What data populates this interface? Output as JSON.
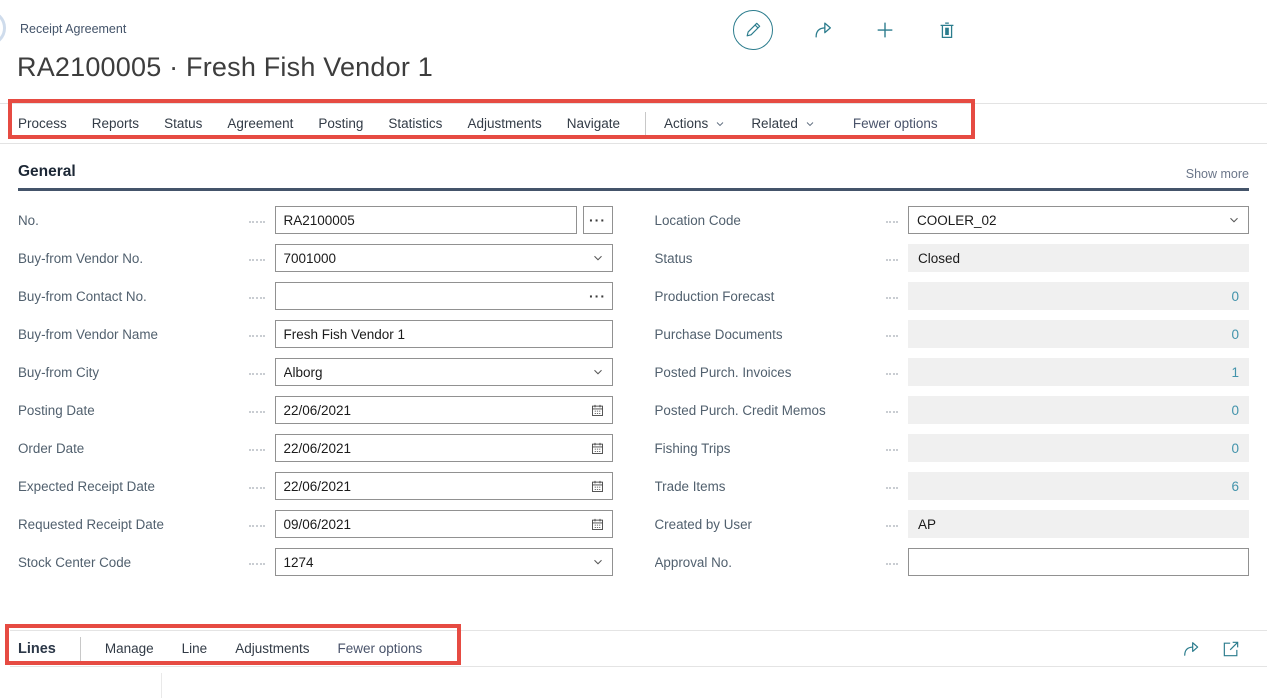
{
  "colors": {
    "accent_teal": "#2b7c8d",
    "link_teal": "#4293ab",
    "annotation_red": "#e64b42",
    "underline_navy": "#44546a",
    "readonly_bg": "#f0f0f0"
  },
  "header": {
    "breadcrumb": "Receipt Agreement",
    "title": "RA2100005 · Fresh Fish Vendor 1",
    "actions": [
      {
        "icon": "edit-pencil-icon"
      },
      {
        "icon": "share-icon"
      },
      {
        "icon": "add-icon"
      },
      {
        "icon": "delete-icon"
      }
    ]
  },
  "menubar": {
    "items": [
      "Process",
      "Reports",
      "Status",
      "Agreement",
      "Posting",
      "Statistics",
      "Adjustments",
      "Navigate"
    ],
    "dropdown_items": [
      "Actions",
      "Related"
    ],
    "fewer_options_label": "Fewer options"
  },
  "general": {
    "title": "General",
    "show_more": "Show more",
    "left_fields": [
      {
        "label": "No.",
        "value": "RA2100005",
        "control": "assist"
      },
      {
        "label": "Buy-from Vendor No.",
        "value": "7001000",
        "control": "combo"
      },
      {
        "label": "Buy-from Contact No.",
        "value": "",
        "control": "ellipsis"
      },
      {
        "label": "Buy-from Vendor Name",
        "value": "Fresh Fish Vendor 1",
        "control": "text"
      },
      {
        "label": "Buy-from City",
        "value": "Alborg",
        "control": "combo"
      },
      {
        "label": "Posting Date",
        "value": "22/06/2021",
        "control": "date"
      },
      {
        "label": "Order Date",
        "value": "22/06/2021",
        "control": "date"
      },
      {
        "label": "Expected Receipt Date",
        "value": "22/06/2021",
        "control": "date"
      },
      {
        "label": "Requested Receipt Date",
        "value": "09/06/2021",
        "control": "date"
      },
      {
        "label": "Stock Center Code",
        "value": "1274",
        "control": "combo"
      }
    ],
    "right_fields": [
      {
        "label": "Location Code",
        "value": "COOLER_02",
        "control": "combo"
      },
      {
        "label": "Status",
        "value": "Closed",
        "control": "readonly"
      },
      {
        "label": "Production Forecast",
        "value": "0",
        "control": "readonly-num"
      },
      {
        "label": "Purchase Documents",
        "value": "0",
        "control": "readonly-num"
      },
      {
        "label": "Posted Purch. Invoices",
        "value": "1",
        "control": "readonly-num"
      },
      {
        "label": "Posted Purch. Credit Memos",
        "value": "0",
        "control": "readonly-num"
      },
      {
        "label": "Fishing Trips",
        "value": "0",
        "control": "readonly-num"
      },
      {
        "label": "Trade Items",
        "value": "6",
        "control": "readonly-num"
      },
      {
        "label": "Created by User",
        "value": "AP",
        "control": "readonly"
      },
      {
        "label": "Approval No.",
        "value": "",
        "control": "text"
      }
    ]
  },
  "lines": {
    "title": "Lines",
    "menu_items": [
      "Manage",
      "Line",
      "Adjustments"
    ],
    "fewer_options_label": "Fewer options",
    "icons": [
      "share-icon",
      "open-in-window-icon"
    ]
  }
}
